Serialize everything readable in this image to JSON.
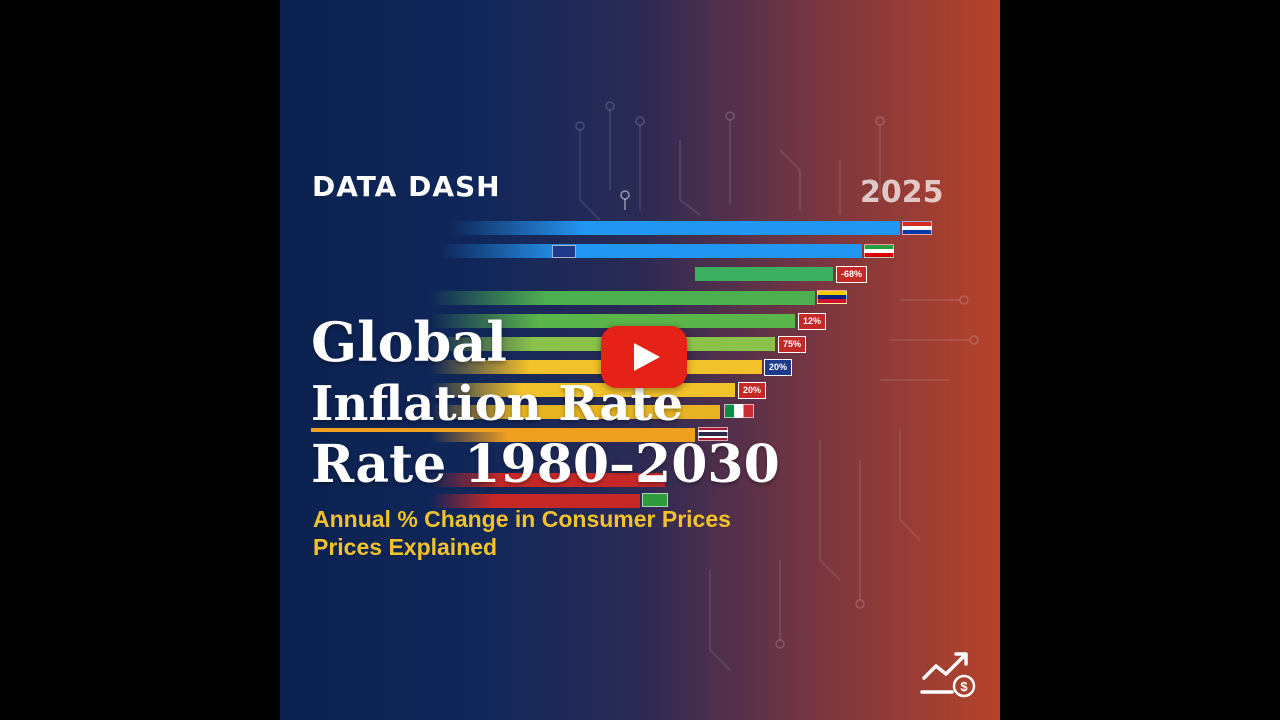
{
  "brand": "DATA DASH",
  "year": "2025",
  "title": {
    "line1": "Global",
    "line2": "Inflation Rate",
    "line3": "Rate 1980–2030"
  },
  "subtitle": {
    "line1": "Annual % Change in Consumer Prices",
    "line2": "Prices Explained"
  },
  "bar_labels": [
    "-68%",
    "12%",
    "75%",
    "20%",
    "20%"
  ],
  "play_button": "play-icon",
  "logo_icon": "chart-dollar-icon",
  "colors": {
    "bg_left": "#0b2250",
    "bg_right": "#b6432a",
    "subtitle": "#f2c22a",
    "play": "#e62117",
    "accent_underline": "#f0a020"
  }
}
